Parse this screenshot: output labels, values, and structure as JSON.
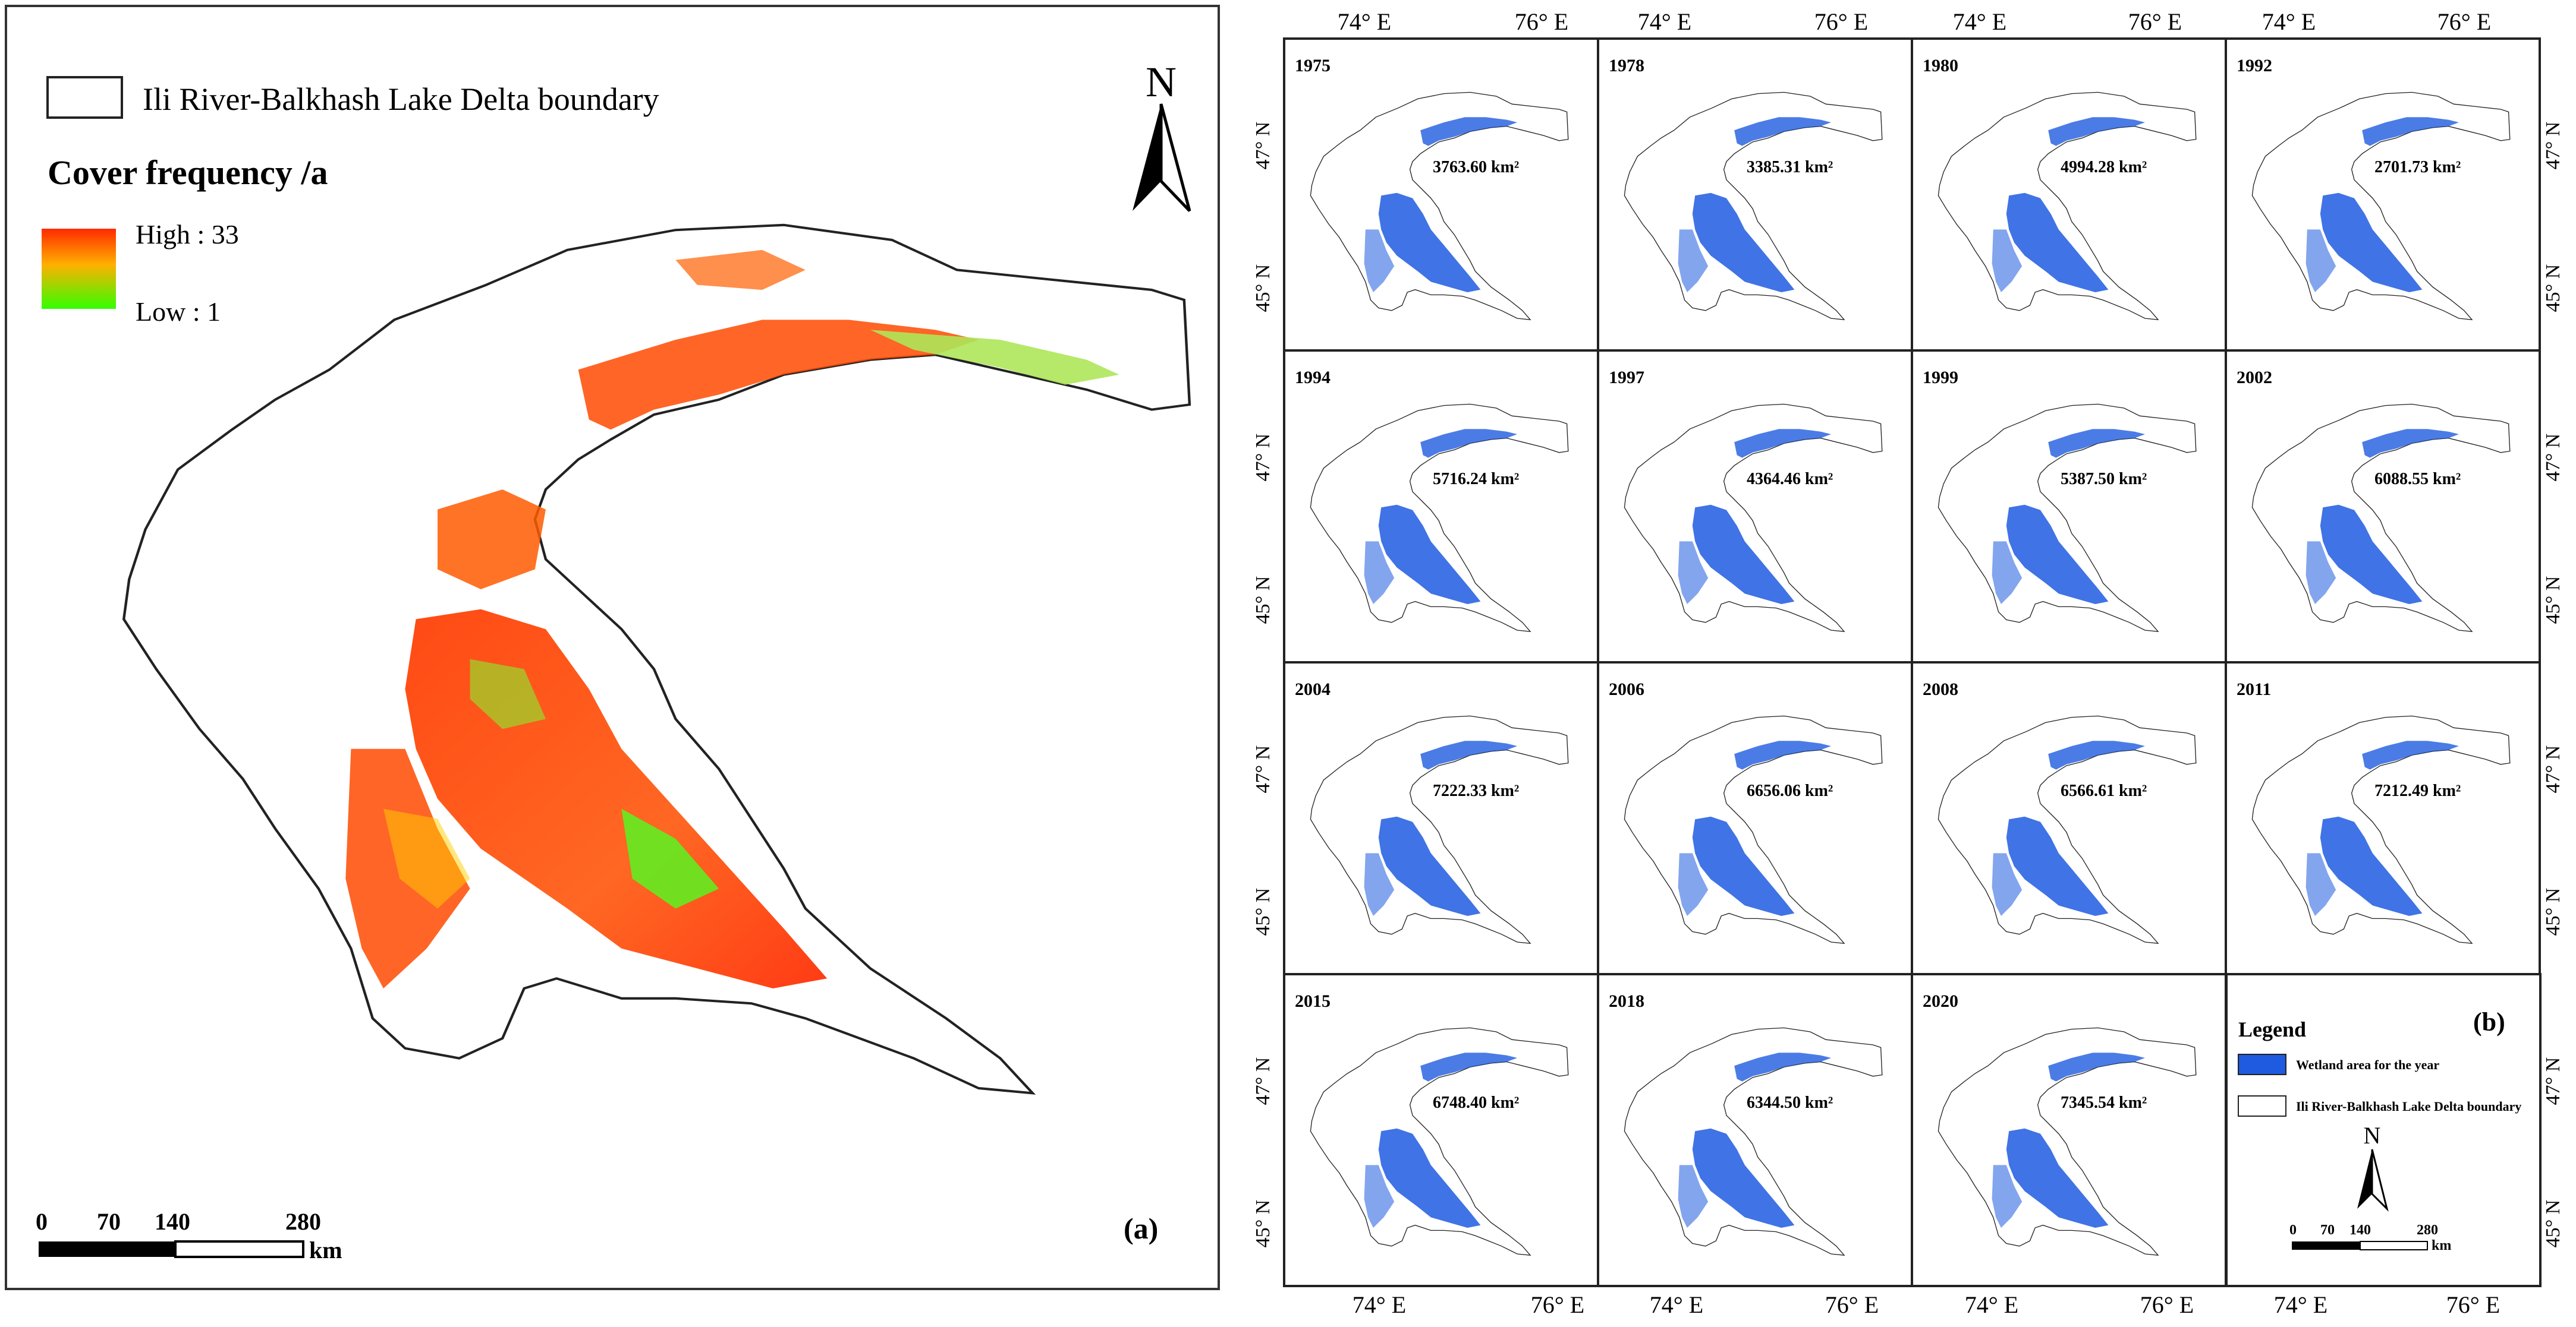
{
  "panel_a": {
    "boundary_legend": "Ili River-Balkhash Lake Delta boundary",
    "frequency_title": "Cover frequency /a",
    "high_label": "High : 33",
    "low_label": "Low : 1",
    "north_label": "N",
    "scale_ticks": [
      "0",
      "70",
      "140",
      "280"
    ],
    "scale_unit": "km",
    "panel_label": "(a)"
  },
  "panel_b": {
    "top_ticks": [
      "74° E",
      "76° E",
      "74° E",
      "76° E",
      "74° E",
      "76° E",
      "74° E",
      "76° E"
    ],
    "bottom_ticks": [
      "74° E",
      "76° E",
      "74° E",
      "76° E",
      "74° E",
      "76° E",
      "74° E",
      "76° E"
    ],
    "lat_ticks": [
      "47° N",
      "45° N"
    ],
    "panel_label": "(b)",
    "cells": [
      {
        "year": "1975",
        "area": "3763.60 km²"
      },
      {
        "year": "1978",
        "area": "3385.31 km²"
      },
      {
        "year": "1980",
        "area": "4994.28 km²"
      },
      {
        "year": "1992",
        "area": "2701.73 km²"
      },
      {
        "year": "1994",
        "area": "5716.24 km²"
      },
      {
        "year": "1997",
        "area": "4364.46 km²"
      },
      {
        "year": "1999",
        "area": "5387.50 km²"
      },
      {
        "year": "2002",
        "area": "6088.55 km²"
      },
      {
        "year": "2004",
        "area": "7222.33 km²"
      },
      {
        "year": "2006",
        "area": "6656.06 km²"
      },
      {
        "year": "2008",
        "area": "6566.61 km²"
      },
      {
        "year": "2011",
        "area": "7212.49 km²"
      },
      {
        "year": "2015",
        "area": "6748.40 km²"
      },
      {
        "year": "2018",
        "area": "6344.50 km²"
      },
      {
        "year": "2020",
        "area": "7345.54 km²"
      }
    ],
    "legend": {
      "title": "Legend",
      "wetland": "Wetland area for the year",
      "boundary": "Ili River-Balkhash Lake Delta boundary",
      "north_label": "N",
      "scale_ticks": [
        "0",
        "70",
        "140",
        "280"
      ],
      "scale_unit": "km"
    }
  },
  "colors": {
    "high": "#ff2a00",
    "low": "#33ff00",
    "wetland": "#1e5be0",
    "boundary": "#333333"
  }
}
